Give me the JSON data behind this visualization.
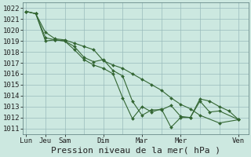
{
  "background_color": "#cce8e0",
  "grid_color": "#99bbbb",
  "line_color": "#336633",
  "marker_color": "#336633",
  "xlabel": "Pression niveau de la mer( hPa )",
  "ylim": [
    1010.5,
    1022.5
  ],
  "yticks": [
    1011,
    1012,
    1013,
    1014,
    1015,
    1016,
    1017,
    1018,
    1019,
    1020,
    1021,
    1022
  ],
  "major_xtick_positions": [
    0,
    12,
    24,
    48,
    72,
    96,
    132
  ],
  "major_xtick_labels": [
    "Lun",
    "Jeu",
    "Sam",
    "Dim",
    "Mar",
    "Mer",
    "Ven"
  ],
  "xlabel_fontsize": 8,
  "tick_fontsize": 6.5,
  "linewidth": 0.8,
  "markersize": 2.0,
  "xlim": [
    -2,
    138
  ],
  "series": [
    {
      "x": [
        0,
        6,
        12,
        18,
        24,
        30,
        36,
        42,
        48,
        54,
        60,
        66,
        72,
        78,
        84,
        90,
        96,
        102,
        108,
        120,
        132
      ],
      "y": [
        1021.7,
        1021.5,
        1019.8,
        1019.2,
        1019.1,
        1018.8,
        1018.5,
        1018.2,
        1017.2,
        1016.8,
        1016.5,
        1016.0,
        1015.5,
        1015.0,
        1014.5,
        1013.8,
        1013.2,
        1012.8,
        1012.2,
        1011.5,
        1011.8
      ]
    },
    {
      "x": [
        0,
        6,
        12,
        18,
        24,
        30,
        36,
        42,
        48,
        54,
        60,
        66,
        72,
        78,
        84,
        90,
        96,
        102,
        108,
        114,
        120,
        126,
        132
      ],
      "y": [
        1021.7,
        1021.5,
        1019.0,
        1019.1,
        1019.0,
        1018.2,
        1017.3,
        1016.8,
        1016.5,
        1016.0,
        1013.8,
        1011.9,
        1013.0,
        1012.5,
        1012.8,
        1011.1,
        1012.0,
        1012.0,
        1013.7,
        1013.5,
        1013.0,
        1012.6,
        1011.8
      ]
    },
    {
      "x": [
        0,
        6,
        12,
        18,
        24,
        30,
        36,
        42,
        48,
        54,
        60,
        66,
        72,
        78,
        84,
        90,
        96,
        102,
        108,
        114,
        120,
        132
      ],
      "y": [
        1021.7,
        1021.5,
        1019.3,
        1019.1,
        1019.0,
        1018.5,
        1017.5,
        1017.1,
        1017.3,
        1016.3,
        1015.8,
        1013.5,
        1012.2,
        1012.7,
        1012.7,
        1013.1,
        1012.1,
        1012.0,
        1013.5,
        1012.5,
        1012.6,
        1011.8
      ]
    }
  ]
}
